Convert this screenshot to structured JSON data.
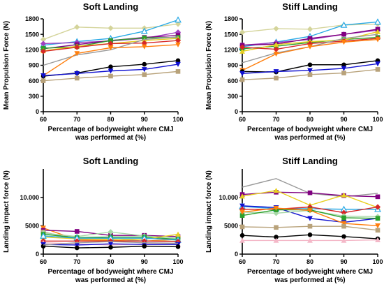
{
  "chart_data": [
    {
      "type": "line",
      "title": "Soft Landing",
      "ylabel": "Mean Propulsion Force  (N)",
      "xlabel": "Percentage of bodyweight where CMJ was performed at (%)",
      "xlabel_lines": [
        "Percentage of bodyweight where CMJ",
        "was performed at (%)"
      ],
      "x": [
        60,
        70,
        80,
        90,
        100
      ],
      "xlim": [
        60,
        100
      ],
      "ylim": [
        0,
        1800
      ],
      "yticks": [
        0,
        300,
        600,
        900,
        1200,
        1500,
        1800
      ],
      "ytick_labels": [
        "0",
        "300",
        "600",
        "900",
        "1200",
        "1500",
        "1800"
      ],
      "series": [
        {
          "color": "#d4d49a",
          "marker": "diamond",
          "values": [
            1400,
            1640,
            1620,
            1620,
            1700
          ]
        },
        {
          "color": "#29a9e6",
          "marker": "triangle-open",
          "values": [
            1290,
            1360,
            1420,
            1560,
            1780
          ]
        },
        {
          "color": "#a040c0",
          "marker": "diamond",
          "values": [
            1320,
            1340,
            1370,
            1420,
            1540
          ]
        },
        {
          "color": "#800080",
          "marker": "square",
          "values": [
            1220,
            1300,
            1380,
            1440,
            1480
          ]
        },
        {
          "color": "#2ca02c",
          "marker": "square",
          "values": [
            1230,
            1260,
            1380,
            1430,
            1440
          ]
        },
        {
          "color": "#e8d020",
          "marker": "triangle",
          "values": [
            1180,
            1270,
            1320,
            1380,
            1420
          ]
        },
        {
          "color": "#d62728",
          "marker": "diamond",
          "values": [
            1170,
            1250,
            1320,
            1330,
            1380
          ]
        },
        {
          "color": "#999999",
          "marker": "none",
          "values": [
            900,
            1100,
            1200,
            1400,
            1450
          ]
        },
        {
          "color": "#ff7f0e",
          "marker": "triangle-down",
          "values": [
            700,
            1130,
            1240,
            1260,
            1300
          ]
        },
        {
          "color": "#000000",
          "marker": "circle",
          "values": [
            690,
            750,
            870,
            920,
            990
          ]
        },
        {
          "color": "#1010d0",
          "marker": "triangle-down",
          "values": [
            700,
            740,
            790,
            820,
            920
          ]
        },
        {
          "color": "#b8a27a",
          "marker": "square",
          "values": [
            600,
            650,
            690,
            720,
            780
          ]
        }
      ]
    },
    {
      "type": "line",
      "title": "Stiff Landing",
      "ylabel": "Mean Propulsion Force  (N)",
      "xlabel": "Percentage of bodyweight where CMJ was performed at (%)",
      "xlabel_lines": [
        "Percentage of bodyweight where CMJ",
        "was performed at (%)"
      ],
      "x": [
        60,
        70,
        80,
        90,
        100
      ],
      "xlim": [
        60,
        100
      ],
      "ylim": [
        0,
        1800
      ],
      "yticks": [
        0,
        300,
        600,
        900,
        1200,
        1500,
        1800
      ],
      "ytick_labels": [
        "0",
        "300",
        "600",
        "900",
        "1200",
        "1500",
        "1800"
      ],
      "series": [
        {
          "color": "#d4d49a",
          "marker": "diamond",
          "values": [
            1540,
            1610,
            1600,
            1680,
            1700
          ]
        },
        {
          "color": "#29a9e6",
          "marker": "triangle-open",
          "values": [
            1260,
            1350,
            1460,
            1680,
            1740
          ]
        },
        {
          "color": "#a040c0",
          "marker": "diamond",
          "values": [
            1290,
            1340,
            1400,
            1500,
            1580
          ]
        },
        {
          "color": "#800080",
          "marker": "square",
          "values": [
            1290,
            1310,
            1420,
            1500,
            1600
          ]
        },
        {
          "color": "#2ca02c",
          "marker": "square",
          "values": [
            1220,
            1270,
            1340,
            1400,
            1440
          ]
        },
        {
          "color": "#e8d020",
          "marker": "triangle",
          "values": [
            1170,
            1300,
            1360,
            1390,
            1550
          ]
        },
        {
          "color": "#d62728",
          "marker": "diamond",
          "values": [
            1250,
            1210,
            1320,
            1370,
            1420
          ]
        },
        {
          "color": "#999999",
          "marker": "none",
          "values": [
            950,
            1140,
            1260,
            1420,
            1500
          ]
        },
        {
          "color": "#ff7f0e",
          "marker": "triangle-down",
          "values": [
            800,
            1120,
            1260,
            1350,
            1400
          ]
        },
        {
          "color": "#000000",
          "marker": "circle",
          "values": [
            780,
            770,
            910,
            910,
            990
          ]
        },
        {
          "color": "#1010d0",
          "marker": "triangle-down",
          "values": [
            740,
            780,
            800,
            840,
            930
          ]
        },
        {
          "color": "#b8a27a",
          "marker": "square",
          "values": [
            620,
            650,
            720,
            750,
            820
          ]
        }
      ]
    },
    {
      "type": "line",
      "title": "Soft Landing",
      "ylabel": "Landing  impact force  (N)",
      "xlabel": "Percentage of bodyweight where CMJ was performed at (%)",
      "xlabel_lines": [
        "Percentage of bodyweight where CMJ",
        "was performed at (%)"
      ],
      "x": [
        60,
        70,
        80,
        90,
        100
      ],
      "xlim": [
        60,
        100
      ],
      "ylim": [
        0,
        15000
      ],
      "yticks": [
        0,
        5000,
        10000
      ],
      "ytick_labels": [
        "0",
        "5000",
        "10.000"
      ],
      "series": [
        {
          "color": "#ff7f0e",
          "marker": "triangle-down",
          "values": [
            4600,
            2500,
            2400,
            2300,
            2600
          ]
        },
        {
          "color": "#800080",
          "marker": "square",
          "values": [
            4200,
            4000,
            3300,
            3300,
            3100
          ]
        },
        {
          "color": "#b8a27a",
          "marker": "square",
          "values": [
            3900,
            2600,
            2700,
            2300,
            2300
          ]
        },
        {
          "color": "#a8d8a8",
          "marker": "diamond",
          "values": [
            3700,
            3100,
            3900,
            3200,
            2800
          ]
        },
        {
          "color": "#2ca02c",
          "marker": "square",
          "values": [
            3500,
            2900,
            3000,
            3000,
            2600
          ]
        },
        {
          "color": "#e8d020",
          "marker": "triangle",
          "values": [
            3000,
            2700,
            2600,
            2600,
            3500
          ]
        },
        {
          "color": "#29a9e6",
          "marker": "triangle-open",
          "values": [
            3200,
            2800,
            2800,
            2800,
            2500
          ]
        },
        {
          "color": "#d62728",
          "marker": "diamond",
          "values": [
            2300,
            2300,
            2300,
            2300,
            2200
          ]
        },
        {
          "color": "#f4b8c8",
          "marker": "triangle",
          "values": [
            2000,
            1800,
            1600,
            1800,
            1800
          ]
        },
        {
          "color": "#1010d0",
          "marker": "triangle-down",
          "values": [
            1700,
            1600,
            1800,
            1700,
            1700
          ]
        },
        {
          "color": "#000000",
          "marker": "circle",
          "values": [
            1400,
            1100,
            1200,
            1400,
            1300
          ]
        },
        {
          "color": "#999999",
          "marker": "none",
          "values": [
            1600,
            2000,
            2200,
            2000,
            1900
          ]
        }
      ]
    },
    {
      "type": "line",
      "title": "Stiff Landing",
      "ylabel": "Landing  impact force  (N)",
      "xlabel": "Percentage of bodyweight where CMJ was performed at (%)",
      "xlabel_lines": [
        "Percentage of bodyweight where CMJ",
        "was performed at (%)"
      ],
      "x": [
        60,
        70,
        80,
        90,
        100
      ],
      "xlim": [
        60,
        100
      ],
      "ylim": [
        0,
        15000
      ],
      "yticks": [
        0,
        5000,
        10000
      ],
      "ytick_labels": [
        "0",
        "5000",
        "10.000"
      ],
      "series": [
        {
          "color": "#999999",
          "marker": "none",
          "values": [
            11800,
            13300,
            10700,
            10100,
            10700
          ]
        },
        {
          "color": "#800080",
          "marker": "square",
          "values": [
            10500,
            10900,
            10800,
            10300,
            10100
          ]
        },
        {
          "color": "#e8d020",
          "marker": "triangle",
          "values": [
            10200,
            11200,
            8600,
            10400,
            8200
          ]
        },
        {
          "color": "#29a9e6",
          "marker": "triangle-open",
          "values": [
            8400,
            8000,
            8000,
            7900,
            7900
          ]
        },
        {
          "color": "#1010d0",
          "marker": "triangle-down",
          "values": [
            8500,
            8200,
            6300,
            5600,
            6300
          ]
        },
        {
          "color": "#d62728",
          "marker": "diamond",
          "values": [
            7900,
            7900,
            8300,
            7300,
            8300
          ]
        },
        {
          "color": "#a8d8a8",
          "marker": "diamond",
          "values": [
            7400,
            7200,
            7700,
            6700,
            6600
          ]
        },
        {
          "color": "#2ca02c",
          "marker": "square",
          "values": [
            6800,
            7800,
            7800,
            6400,
            6300
          ]
        },
        {
          "color": "#ff7f0e",
          "marker": "triangle-down",
          "values": [
            7400,
            8100,
            7700,
            5400,
            5000
          ]
        },
        {
          "color": "#b8a27a",
          "marker": "square",
          "values": [
            4800,
            4700,
            4900,
            4900,
            4200
          ]
        },
        {
          "color": "#000000",
          "marker": "circle",
          "values": [
            3300,
            3000,
            3400,
            3100,
            2700
          ]
        },
        {
          "color": "#f4b8c8",
          "marker": "triangle",
          "values": [
            2400,
            2400,
            2400,
            2400,
            2500
          ]
        }
      ]
    }
  ]
}
